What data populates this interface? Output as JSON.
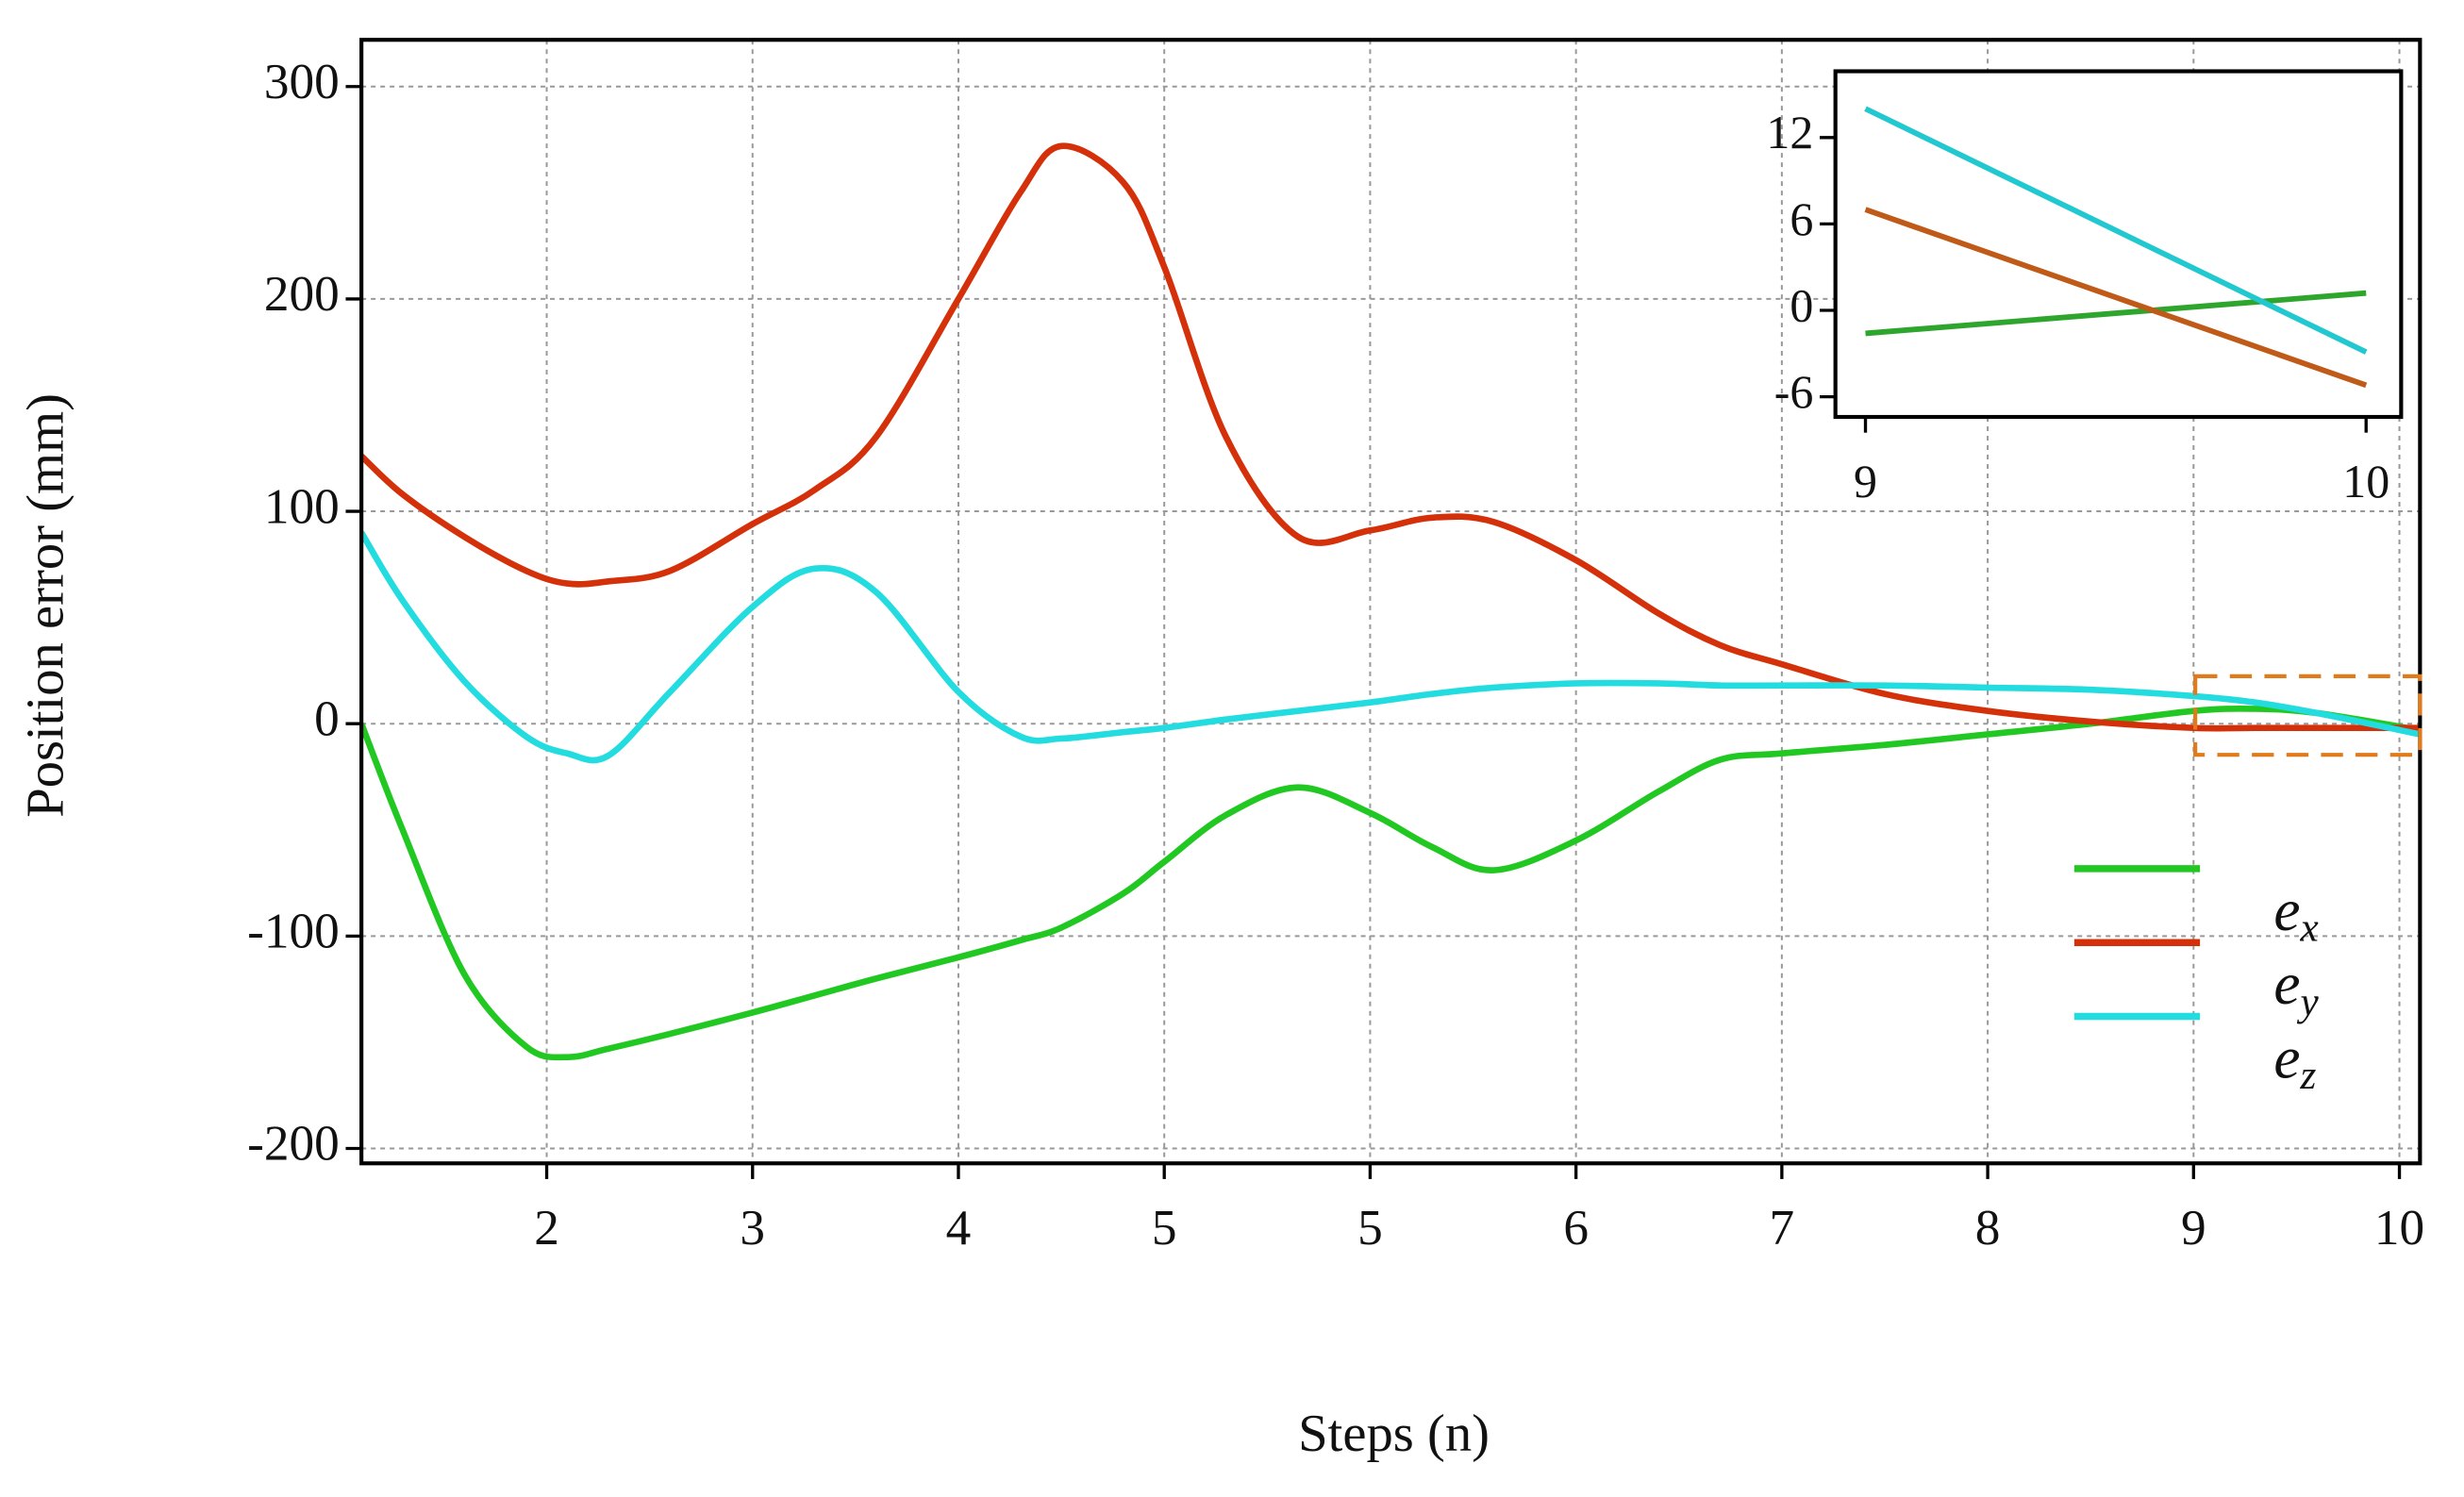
{
  "chart_data": [
    {
      "type": "line",
      "x_label": "Steps (n)",
      "y_label": "Position error (mm)",
      "xlim": [
        1.1,
        11.1
      ],
      "ylim": [
        -207,
        322
      ],
      "xticks": [
        2,
        3,
        4,
        5,
        {
          "value": 6,
          "label": "5"
        },
        {
          "value": 7,
          "label": "6"
        },
        {
          "value": 8,
          "label": "7"
        },
        {
          "value": 9,
          "label": "8"
        },
        {
          "value": 10,
          "label": "9"
        },
        {
          "value": 11,
          "label": "10"
        }
      ],
      "yticks": [
        -200,
        -100,
        0,
        100,
        200,
        300
      ],
      "grid": true,
      "legend": "center right",
      "x": [
        1.1,
        1.3,
        1.6,
        1.9,
        2.1,
        2.3,
        2.6,
        3.0,
        3.3,
        3.6,
        4.0,
        4.3,
        4.5,
        4.8,
        5.0,
        5.3,
        5.65,
        6.0,
        6.3,
        6.6,
        7.0,
        7.4,
        7.7,
        8.0,
        8.5,
        9.0,
        9.5,
        10.0,
        10.3,
        10.6,
        11.1
      ],
      "series": [
        {
          "name": [
            "e",
            "x"
          ],
          "color": "#22c822",
          "values": [
            0,
            -50,
            -118,
            -152,
            -157,
            -153,
            -146,
            -136,
            -128,
            -120,
            -110,
            -102,
            -96,
            -80,
            -65,
            -43,
            -30,
            -42,
            -58,
            -69,
            -55,
            -32,
            -17,
            -14,
            -10,
            -5,
            0,
            6,
            7,
            5,
            -3
          ]
        },
        {
          "name": [
            "e",
            "y"
          ],
          "color": "#d4300a",
          "values": [
            126,
            108,
            88,
            72,
            66,
            67,
            72,
            94,
            110,
            135,
            200,
            250,
            272,
            255,
            215,
            135,
            88,
            91,
            97,
            95,
            77,
            52,
            37,
            28,
            14,
            6,
            1,
            -2,
            -2,
            -2,
            -2
          ]
        },
        {
          "name": [
            "e",
            "z"
          ],
          "color": "#22dce0",
          "values": [
            90,
            58,
            20,
            -6,
            -14,
            -15,
            15,
            55,
            73,
            62,
            15,
            -6,
            -7,
            -4,
            -2,
            2,
            6,
            10,
            14,
            17,
            19,
            19,
            18,
            18,
            18,
            17,
            16,
            13,
            10,
            5,
            -5
          ]
        }
      ]
    },
    {
      "type": "line",
      "xlim": [
        8.94,
        10.07
      ],
      "ylim": [
        -7.4,
        16.6
      ],
      "xticks": [
        9,
        10
      ],
      "yticks": [
        -6,
        0,
        6,
        12
      ],
      "grid": false,
      "x": [
        9,
        10
      ],
      "series": [
        {
          "color": "#2ea62e",
          "values": [
            -1.6,
            1.2
          ]
        },
        {
          "color": "#c05a18",
          "values": [
            7,
            -5.2
          ]
        },
        {
          "color": "#22c8d0",
          "values": [
            14,
            -2.9
          ]
        }
      ]
    }
  ]
}
